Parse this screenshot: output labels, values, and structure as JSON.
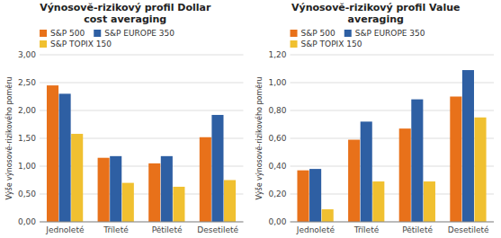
{
  "chart_data": [
    {
      "type": "bar",
      "title": "Výnosově-rizikový profil Dollar\ncost averaging",
      "y_label": "Výše výnosově-rizikového poměru",
      "categories": [
        "Jednoleté",
        "Tříleté",
        "Pětileté",
        "Desetileté"
      ],
      "series": [
        {
          "name": "S&P 500",
          "color": "#E8711A",
          "values": [
            2.45,
            1.15,
            1.05,
            1.52
          ]
        },
        {
          "name": "S&P EUROPE 350",
          "color": "#2E5FA3",
          "values": [
            2.3,
            1.18,
            1.18,
            1.92
          ]
        },
        {
          "name": "S&P TOPIX 150",
          "color": "#F0C030",
          "values": [
            1.58,
            0.7,
            0.63,
            0.75
          ]
        }
      ],
      "ylim": [
        0,
        3.0
      ],
      "yticks": [
        {
          "value": 0.0,
          "label": "0,00"
        },
        {
          "value": 0.5,
          "label": "0,50"
        },
        {
          "value": 1.0,
          "label": "1,00"
        },
        {
          "value": 1.5,
          "label": "1,50"
        },
        {
          "value": 2.0,
          "label": "2,00"
        },
        {
          "value": 2.5,
          "label": "2,50"
        },
        {
          "value": 3.0,
          "label": "3,00"
        }
      ],
      "grid": true,
      "legend": "upper left"
    },
    {
      "type": "bar",
      "title": "Výnosově-rizikový profil Value\naveraging",
      "y_label": "Výše výnosově-rizikového poměru",
      "categories": [
        "Jednoleté",
        "Tříleté",
        "Pětileté",
        "Desetileté"
      ],
      "series": [
        {
          "name": "S&P 500",
          "color": "#E8711A",
          "values": [
            0.37,
            0.59,
            0.67,
            0.9
          ]
        },
        {
          "name": "S&P EUROPE 350",
          "color": "#2E5FA3",
          "values": [
            0.38,
            0.72,
            0.88,
            1.09
          ]
        },
        {
          "name": "S&P TOPIX 150",
          "color": "#F0C030",
          "values": [
            0.09,
            0.29,
            0.29,
            0.75
          ]
        }
      ],
      "ylim": [
        0,
        1.2
      ],
      "yticks": [
        {
          "value": 0.0,
          "label": "0,00"
        },
        {
          "value": 0.2,
          "label": "0,20"
        },
        {
          "value": 0.4,
          "label": "0,40"
        },
        {
          "value": 0.6,
          "label": "0,60"
        },
        {
          "value": 0.8,
          "label": "0,80"
        },
        {
          "value": 1.0,
          "label": "1,00"
        },
        {
          "value": 1.2,
          "label": "1,20"
        }
      ],
      "grid": true,
      "legend": "upper left"
    }
  ]
}
